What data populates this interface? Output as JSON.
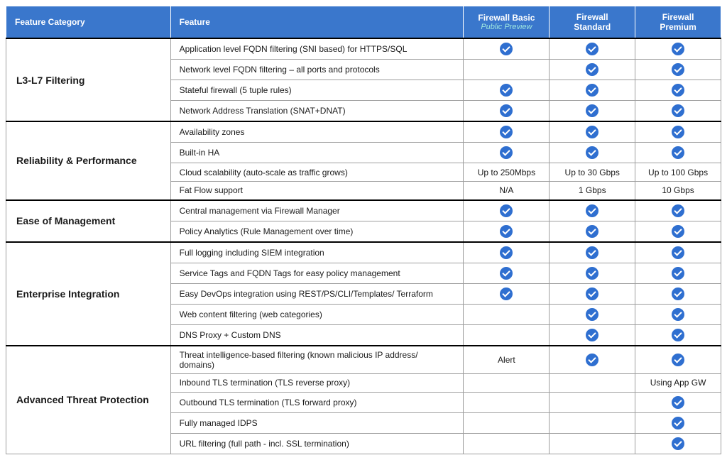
{
  "headers": {
    "category": "Feature Category",
    "feature": "Feature",
    "col1_title": "Firewall Basic",
    "col1_sub": "Public Preview",
    "col2_title": "Firewall Standard",
    "col3_title": "Firewall Premium"
  },
  "colors": {
    "header_bg": "#3a77cc",
    "check_bg": "#2f6fd0",
    "subtitle_color": "#9fe8e0"
  },
  "categories": [
    {
      "name": "L3-L7 Filtering",
      "rows": [
        {
          "feature": "Application level FQDN filtering (SNI based) for HTTPS/SQL",
          "basic": "check",
          "standard": "check",
          "premium": "check"
        },
        {
          "feature": "Network level FQDN filtering – all ports and protocols",
          "basic": "",
          "standard": "check",
          "premium": "check"
        },
        {
          "feature": "Stateful firewall (5 tuple rules)",
          "basic": "check",
          "standard": "check",
          "premium": "check"
        },
        {
          "feature": "Network Address Translation (SNAT+DNAT)",
          "basic": "check",
          "standard": "check",
          "premium": "check"
        }
      ]
    },
    {
      "name": "Reliability & Performance",
      "rows": [
        {
          "feature": "Availability zones",
          "basic": "check",
          "standard": "check",
          "premium": "check"
        },
        {
          "feature": "Built-in HA",
          "basic": "check",
          "standard": "check",
          "premium": "check"
        },
        {
          "feature": "Cloud scalability (auto-scale as traffic grows)",
          "basic": "Up to 250Mbps",
          "standard": "Up to 30 Gbps",
          "premium": "Up to 100 Gbps"
        },
        {
          "feature": "Fat Flow support",
          "basic": "N/A",
          "standard": "1 Gbps",
          "premium": "10 Gbps"
        }
      ]
    },
    {
      "name": "Ease of Management",
      "rows": [
        {
          "feature": "Central management via Firewall Manager",
          "basic": "check",
          "standard": "check",
          "premium": "check"
        },
        {
          "feature": "Policy Analytics (Rule Management over time)",
          "basic": "check",
          "standard": "check",
          "premium": "check"
        }
      ]
    },
    {
      "name": "Enterprise Integration",
      "rows": [
        {
          "feature": "Full logging including SIEM integration",
          "basic": "check",
          "standard": "check",
          "premium": "check"
        },
        {
          "feature": "Service Tags and FQDN Tags for easy policy management",
          "basic": "check",
          "standard": "check",
          "premium": "check"
        },
        {
          "feature": "Easy DevOps integration using REST/PS/CLI/Templates/ Terraform",
          "basic": "check",
          "standard": "check",
          "premium": "check"
        },
        {
          "feature": "Web content filtering (web categories)",
          "basic": "",
          "standard": "check",
          "premium": "check"
        },
        {
          "feature": "DNS Proxy + Custom DNS",
          "basic": "",
          "standard": "check",
          "premium": "check"
        }
      ]
    },
    {
      "name": "Advanced Threat Protection",
      "rows": [
        {
          "feature": "Threat intelligence-based filtering (known malicious IP address/ domains)",
          "basic": "Alert",
          "standard": "check",
          "premium": "check"
        },
        {
          "feature": "Inbound TLS termination (TLS reverse proxy)",
          "basic": "",
          "standard": "",
          "premium": "Using App GW"
        },
        {
          "feature": "Outbound TLS termination (TLS forward proxy)",
          "basic": "",
          "standard": "",
          "premium": "check"
        },
        {
          "feature": "Fully managed IDPS",
          "basic": "",
          "standard": "",
          "premium": "check"
        },
        {
          "feature": "URL filtering (full path - incl. SSL termination)",
          "basic": "",
          "standard": "",
          "premium": "check"
        }
      ]
    }
  ]
}
